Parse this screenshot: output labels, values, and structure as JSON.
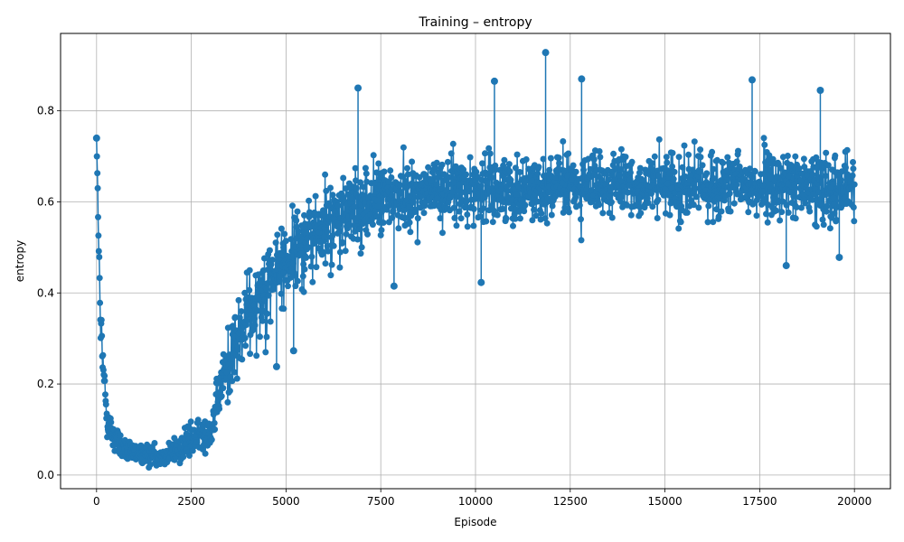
{
  "chart_data": {
    "type": "line",
    "title": "Training – entropy",
    "xlabel": "Episode",
    "ylabel": "entropy",
    "xlim": [
      -950,
      20950
    ],
    "ylim": [
      -0.03,
      0.97
    ],
    "x_ticks": [
      0,
      2500,
      5000,
      7500,
      10000,
      12500,
      15000,
      17500,
      20000
    ],
    "x_tick_labels": [
      "0",
      "2500",
      "5000",
      "7500",
      "10000",
      "12500",
      "15000",
      "17500",
      "20000"
    ],
    "y_ticks": [
      0.0,
      0.2,
      0.4,
      0.6,
      0.8
    ],
    "y_tick_labels": [
      "0.0",
      "0.2",
      "0.4",
      "0.6",
      "0.8"
    ],
    "grid": true,
    "legend": "none",
    "marker": "circle",
    "series_color": "#1f77b4",
    "series": [
      {
        "x": [
          0,
          100,
          200,
          300,
          400,
          500,
          600,
          700,
          800,
          900,
          1000,
          1100,
          1200,
          1300,
          1400,
          1500,
          1600,
          1700,
          1800,
          1900,
          2000,
          2100,
          2200,
          2300,
          2400,
          2500,
          2600,
          2700,
          2800,
          2900,
          3000,
          3100,
          3200,
          3300,
          3400,
          3500,
          3600,
          3700,
          3800,
          3900,
          4000,
          4100,
          4200,
          4300,
          4400,
          4500,
          4600,
          4700,
          4800,
          4900,
          5000,
          5200,
          5400,
          5600,
          5800,
          6000,
          6200,
          6400,
          6600,
          6800,
          7000,
          7250,
          7500,
          7750,
          8000,
          8500,
          9000,
          9500,
          10000,
          10500,
          11000,
          11500,
          12000,
          12500,
          13000,
          13500,
          14000,
          14500,
          15000,
          15500,
          16000,
          16500,
          17000,
          17500,
          18000,
          18500,
          19000,
          19500,
          20000
        ],
        "y": [
          0.74,
          0.33,
          0.2,
          0.12,
          0.09,
          0.08,
          0.07,
          0.06,
          0.05,
          0.045,
          0.045,
          0.045,
          0.045,
          0.045,
          0.045,
          0.045,
          0.045,
          0.045,
          0.045,
          0.045,
          0.05,
          0.055,
          0.06,
          0.065,
          0.07,
          0.075,
          0.08,
          0.085,
          0.09,
          0.095,
          0.1,
          0.12,
          0.16,
          0.2,
          0.23,
          0.25,
          0.27,
          0.29,
          0.31,
          0.33,
          0.35,
          0.37,
          0.39,
          0.4,
          0.41,
          0.42,
          0.43,
          0.44,
          0.45,
          0.46,
          0.47,
          0.49,
          0.51,
          0.52,
          0.53,
          0.54,
          0.55,
          0.56,
          0.57,
          0.58,
          0.59,
          0.6,
          0.605,
          0.61,
          0.615,
          0.62,
          0.625,
          0.63,
          0.63,
          0.63,
          0.63,
          0.63,
          0.635,
          0.635,
          0.635,
          0.635,
          0.635,
          0.635,
          0.635,
          0.635,
          0.635,
          0.635,
          0.635,
          0.635,
          0.635,
          0.635,
          0.635,
          0.635,
          0.635
        ],
        "spread": [
          0.0,
          0.06,
          0.05,
          0.04,
          0.035,
          0.03,
          0.03,
          0.025,
          0.02,
          0.02,
          0.02,
          0.02,
          0.02,
          0.02,
          0.02,
          0.02,
          0.02,
          0.02,
          0.02,
          0.02,
          0.025,
          0.03,
          0.035,
          0.035,
          0.035,
          0.035,
          0.035,
          0.035,
          0.035,
          0.035,
          0.035,
          0.04,
          0.05,
          0.06,
          0.07,
          0.075,
          0.08,
          0.085,
          0.09,
          0.09,
          0.09,
          0.09,
          0.09,
          0.09,
          0.09,
          0.09,
          0.09,
          0.09,
          0.09,
          0.09,
          0.09,
          0.09,
          0.09,
          0.09,
          0.09,
          0.09,
          0.09,
          0.09,
          0.09,
          0.08,
          0.08,
          0.07,
          0.07,
          0.065,
          0.065,
          0.065,
          0.065,
          0.065,
          0.065,
          0.065,
          0.065,
          0.065,
          0.065,
          0.065,
          0.065,
          0.065,
          0.065,
          0.065,
          0.065,
          0.065,
          0.065,
          0.065,
          0.065,
          0.065,
          0.065,
          0.065,
          0.065,
          0.065,
          0.065
        ]
      }
    ],
    "notable_points": [
      {
        "x": 0,
        "y": 0.74
      },
      {
        "x": 6900,
        "y": 0.85
      },
      {
        "x": 10500,
        "y": 0.865
      },
      {
        "x": 11850,
        "y": 0.928
      },
      {
        "x": 12800,
        "y": 0.87
      },
      {
        "x": 17300,
        "y": 0.868
      },
      {
        "x": 19100,
        "y": 0.845
      },
      {
        "x": 7850,
        "y": 0.415
      },
      {
        "x": 10150,
        "y": 0.423
      },
      {
        "x": 5200,
        "y": 0.273
      },
      {
        "x": 4750,
        "y": 0.238
      },
      {
        "x": 18200,
        "y": 0.46
      },
      {
        "x": 19600,
        "y": 0.478
      }
    ]
  }
}
